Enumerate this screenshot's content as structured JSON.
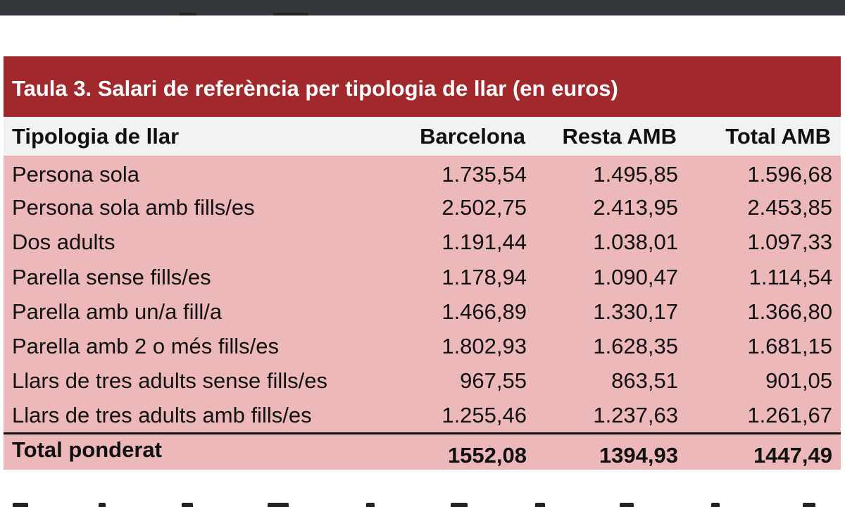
{
  "table": {
    "title": "Taula 3. Salari de referència per tipologia de llar (en euros)",
    "headers": [
      "Tipologia de llar",
      "Barcelona",
      "Resta AMB",
      "Total AMB"
    ],
    "rows": [
      {
        "label": "Persona sola",
        "barcelona": "1.735,54",
        "resta_amb": "1.495,85",
        "total_amb": "1.596,68"
      },
      {
        "label": "Persona sola amb fills/es",
        "barcelona": "2.502,75",
        "resta_amb": "2.413,95",
        "total_amb": "2.453,85"
      },
      {
        "label": "Dos adults",
        "barcelona": "1.191,44",
        "resta_amb": "1.038,01",
        "total_amb": "1.097,33"
      },
      {
        "label": "Parella sense fills/es",
        "barcelona": "1.178,94",
        "resta_amb": "1.090,47",
        "total_amb": "1.114,54"
      },
      {
        "label": "Parella amb un/a fill/a",
        "barcelona": "1.466,89",
        "resta_amb": "1.330,17",
        "total_amb": "1.366,80"
      },
      {
        "label": "Parella amb 2 o més fills/es",
        "barcelona": "1.802,93",
        "resta_amb": "1.628,35",
        "total_amb": "1.681,15"
      },
      {
        "label": "Llars de tres adults sense fills/es",
        "barcelona": "967,55",
        "resta_amb": "863,51",
        "total_amb": "901,05"
      },
      {
        "label": "Llars de tres adults amb fills/es",
        "barcelona": "1.255,46",
        "resta_amb": "1.237,63",
        "total_amb": "1.261,67"
      }
    ],
    "total": {
      "label": "Total ponderat",
      "barcelona": "1552,08",
      "resta_amb": "1394,93",
      "total_amb": "1447,49"
    }
  },
  "colors": {
    "title_bg": "#a1292c",
    "header_bg": "#f2f2f2",
    "row_bg": "#edb8b9",
    "topbar_bg": "#33363a"
  }
}
